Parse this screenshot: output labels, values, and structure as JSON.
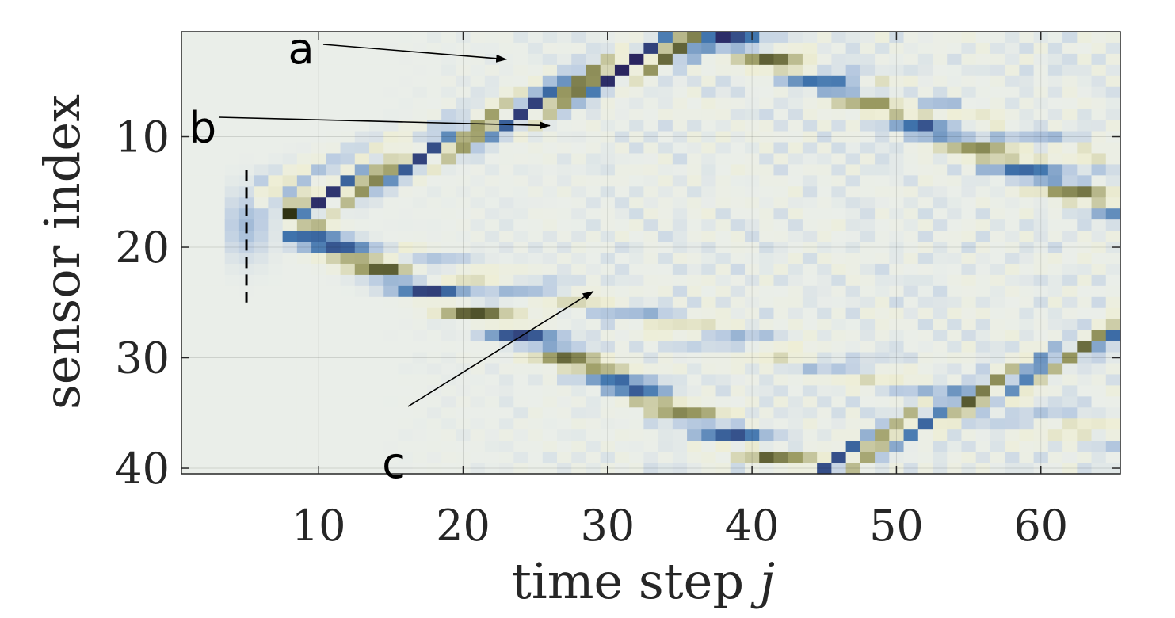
{
  "chart_data": {
    "type": "heatmap",
    "xlabel": "time step",
    "xlabel_var": "j",
    "ylabel": "sensor index",
    "xlim": [
      0.5,
      65.5
    ],
    "ylim": [
      0.5,
      40.5
    ],
    "y_direction": "top-to-bottom",
    "x_ticks": [
      10,
      20,
      30,
      40,
      50,
      60
    ],
    "y_ticks": [
      10,
      20,
      30,
      40
    ],
    "x_tick_labels": [
      "10",
      "20",
      "30",
      "40",
      "50",
      "60"
    ],
    "y_tick_labels": [
      "10",
      "20",
      "30",
      "40"
    ],
    "grid": true,
    "n_time_steps": 65,
    "n_sensors": 40,
    "source_time_step": 5,
    "source_sensor": 18,
    "source_marker_range": [
      13,
      25
    ],
    "wavefronts": [
      {
        "id": "upper-main",
        "start": [
          8,
          17
        ],
        "slope": -0.57,
        "amplitude": 1.0
      },
      {
        "id": "lower-main",
        "start": [
          8,
          18
        ],
        "slope": 0.62,
        "amplitude": 1.0
      },
      {
        "id": "upper-reflection",
        "start": [
          6,
          15
        ],
        "slope": -0.45,
        "amplitude": 0.35
      },
      {
        "id": "lower-reflection",
        "start": [
          16,
          21
        ],
        "slope": 0.33,
        "amplitude": 0.35
      }
    ],
    "colormap": {
      "strong_negative": "#2a2560",
      "negative": "#3f74ad",
      "weak_negative": "#bccde2",
      "neutral": "#eaeee9",
      "weak_positive": "#eeeed6",
      "positive": "#9a9a62",
      "strong_positive": "#2f3212"
    },
    "annotations": [
      {
        "label": "a",
        "target": [
          23,
          3
        ]
      },
      {
        "label": "b",
        "target": [
          26,
          9
        ]
      },
      {
        "label": "c",
        "target": [
          29,
          24
        ]
      }
    ]
  }
}
